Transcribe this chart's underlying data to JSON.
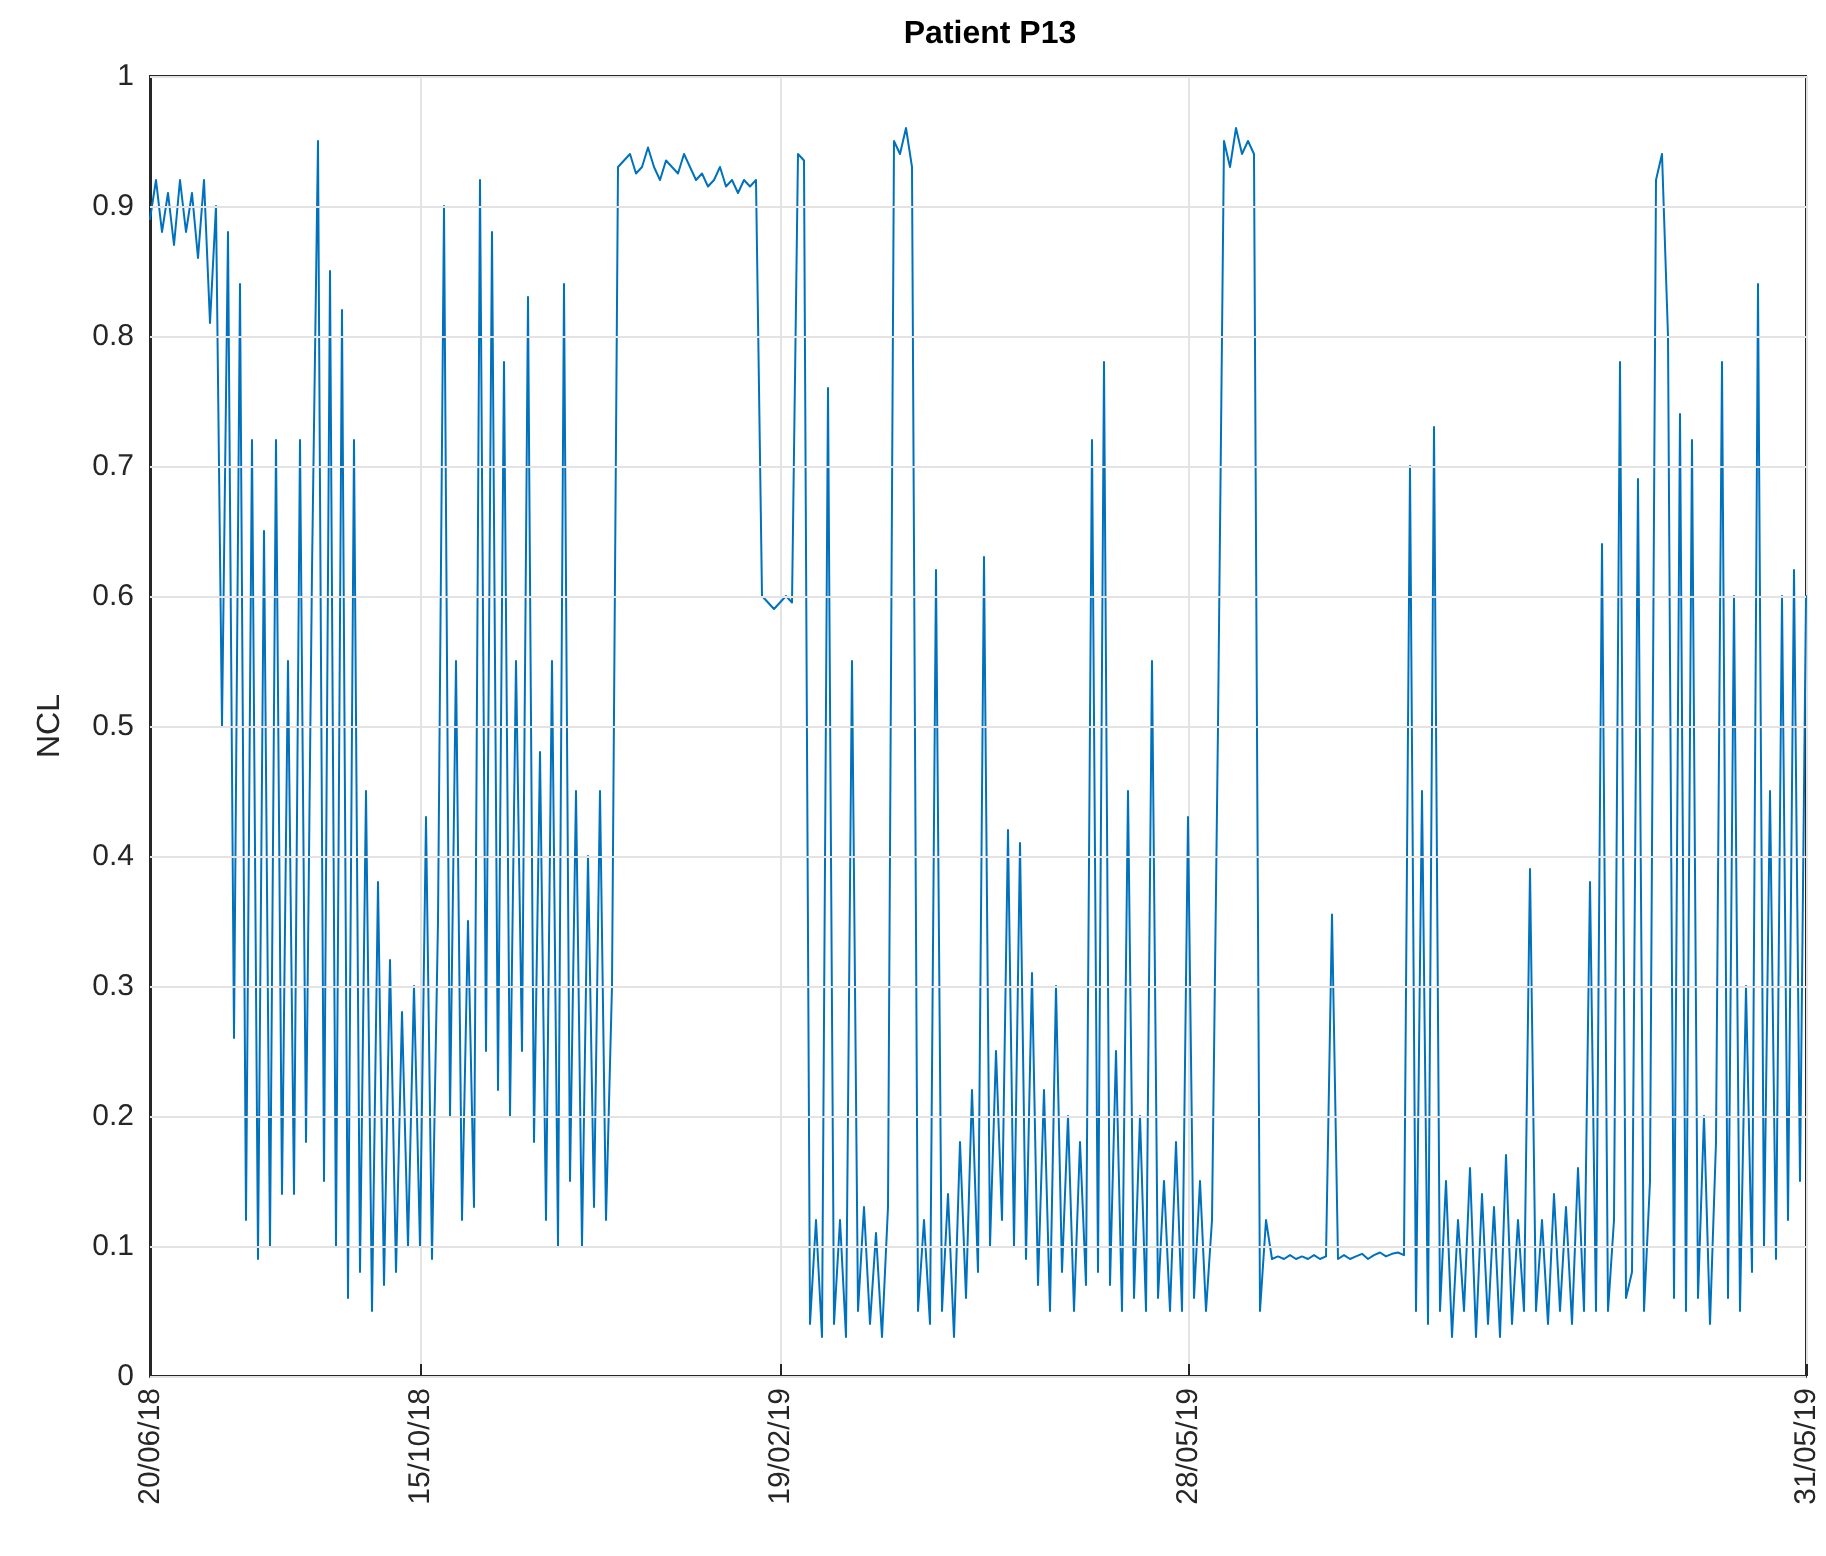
{
  "chart_data": {
    "type": "line",
    "title": "Patient P13",
    "ylabel": "NCL",
    "categories": [
      "20/06/18",
      null,
      null,
      null,
      null,
      null,
      null,
      null,
      null,
      null,
      null,
      null,
      null,
      null,
      null,
      null,
      null,
      null,
      null,
      null,
      null,
      null,
      null,
      null,
      null,
      null,
      null,
      null,
      null,
      null,
      null,
      null,
      null,
      null,
      null,
      null,
      null,
      null,
      null,
      null,
      null,
      null,
      null,
      null,
      null,
      "15/10/18",
      null,
      null,
      null,
      null,
      null,
      null,
      null,
      null,
      null,
      null,
      null,
      null,
      null,
      null,
      null,
      null,
      null,
      null,
      null,
      null,
      null,
      null,
      null,
      null,
      null,
      null,
      null,
      null,
      null,
      null,
      null,
      null,
      null,
      null,
      null,
      null,
      null,
      null,
      null,
      null,
      null,
      null,
      null,
      null,
      null,
      null,
      null,
      null,
      null,
      null,
      null,
      null,
      null,
      null,
      null,
      null,
      null,
      null,
      null,
      "19/02/19",
      null,
      null,
      null,
      null,
      null,
      null,
      null,
      null,
      null,
      null,
      null,
      null,
      null,
      null,
      null,
      null,
      null,
      null,
      null,
      null,
      null,
      null,
      null,
      null,
      null,
      null,
      null,
      null,
      null,
      null,
      null,
      null,
      null,
      null,
      null,
      null,
      null,
      null,
      null,
      null,
      null,
      null,
      null,
      null,
      null,
      null,
      null,
      null,
      null,
      null,
      null,
      null,
      null,
      null,
      null,
      null,
      null,
      null,
      null,
      null,
      null,
      null,
      null,
      null,
      null,
      null,
      null,
      "28/05/19",
      null,
      null,
      null,
      null,
      null,
      null,
      null,
      null,
      null,
      null,
      null,
      null,
      null,
      null,
      null,
      null,
      null,
      null,
      null,
      null,
      null,
      null,
      null,
      null,
      null,
      null,
      null,
      null,
      null,
      null,
      null,
      null,
      null,
      null,
      null,
      null,
      null,
      null,
      null,
      null,
      null,
      null,
      null,
      null,
      null,
      null,
      null,
      null,
      null,
      null,
      null,
      null,
      null,
      null,
      null,
      null,
      null,
      null,
      null,
      null,
      null,
      null,
      null,
      null,
      null,
      null,
      null,
      null,
      null,
      null,
      null,
      null,
      null,
      null,
      null,
      null,
      null,
      null,
      null,
      null,
      null,
      null,
      null,
      null,
      null,
      null,
      null,
      null,
      null,
      null,
      null,
      null,
      null,
      null,
      null,
      null,
      null,
      null,
      null,
      null,
      null,
      null,
      "31/05/19"
    ],
    "series": [
      {
        "color": "#0072bd",
        "values": [
          0.89,
          0.92,
          0.88,
          0.91,
          0.87,
          0.92,
          0.88,
          0.91,
          0.86,
          0.92,
          0.81,
          0.9,
          0.5,
          0.88,
          0.26,
          0.84,
          0.12,
          0.72,
          0.09,
          0.65,
          0.1,
          0.72,
          0.14,
          0.55,
          0.14,
          0.72,
          0.18,
          0.62,
          0.95,
          0.15,
          0.85,
          0.1,
          0.82,
          0.06,
          0.72,
          0.08,
          0.45,
          0.05,
          0.38,
          0.07,
          0.32,
          0.08,
          0.28,
          0.1,
          0.3,
          0.1,
          0.43,
          0.09,
          0.35,
          0.9,
          0.2,
          0.55,
          0.12,
          0.35,
          0.13,
          0.92,
          0.25,
          0.88,
          0.22,
          0.78,
          0.2,
          0.55,
          0.25,
          0.83,
          0.18,
          0.48,
          0.12,
          0.55,
          0.1,
          0.84,
          0.15,
          0.45,
          0.1,
          0.4,
          0.13,
          0.45,
          0.12,
          0.3,
          0.93,
          0.935,
          0.94,
          0.925,
          0.93,
          0.945,
          0.93,
          0.92,
          0.935,
          0.93,
          0.925,
          0.94,
          0.93,
          0.92,
          0.925,
          0.915,
          0.92,
          0.93,
          0.915,
          0.92,
          0.91,
          0.92,
          0.915,
          0.92,
          0.6,
          0.595,
          0.59,
          0.595,
          0.6,
          0.595,
          0.94,
          0.935,
          0.04,
          0.12,
          0.03,
          0.76,
          0.04,
          0.12,
          0.03,
          0.55,
          0.05,
          0.13,
          0.04,
          0.11,
          0.03,
          0.13,
          0.95,
          0.94,
          0.96,
          0.93,
          0.05,
          0.12,
          0.04,
          0.62,
          0.05,
          0.14,
          0.03,
          0.18,
          0.06,
          0.22,
          0.08,
          0.63,
          0.1,
          0.25,
          0.12,
          0.42,
          0.1,
          0.41,
          0.09,
          0.31,
          0.07,
          0.22,
          0.05,
          0.3,
          0.08,
          0.2,
          0.05,
          0.18,
          0.07,
          0.72,
          0.08,
          0.78,
          0.07,
          0.25,
          0.05,
          0.45,
          0.06,
          0.2,
          0.05,
          0.55,
          0.06,
          0.15,
          0.05,
          0.18,
          0.05,
          0.43,
          0.06,
          0.15,
          0.05,
          0.12,
          0.5,
          0.95,
          0.93,
          0.96,
          0.94,
          0.95,
          0.94,
          0.05,
          0.12,
          0.09,
          0.092,
          0.09,
          0.093,
          0.09,
          0.092,
          0.09,
          0.093,
          0.09,
          0.092,
          0.355,
          0.09,
          0.093,
          0.09,
          0.092,
          0.094,
          0.09,
          0.093,
          0.095,
          0.092,
          0.094,
          0.095,
          0.093,
          0.7,
          0.05,
          0.45,
          0.04,
          0.73,
          0.05,
          0.15,
          0.03,
          0.12,
          0.05,
          0.16,
          0.03,
          0.14,
          0.04,
          0.13,
          0.03,
          0.17,
          0.04,
          0.12,
          0.05,
          0.39,
          0.05,
          0.12,
          0.04,
          0.14,
          0.05,
          0.13,
          0.04,
          0.16,
          0.05,
          0.38,
          0.05,
          0.64,
          0.05,
          0.12,
          0.78,
          0.06,
          0.08,
          0.69,
          0.05,
          0.15,
          0.92,
          0.94,
          0.8,
          0.06,
          0.74,
          0.05,
          0.72,
          0.06,
          0.2,
          0.04,
          0.18,
          0.78,
          0.06,
          0.6,
          0.05,
          0.3,
          0.08,
          0.84,
          0.1,
          0.45,
          0.09,
          0.6,
          0.12,
          0.62,
          0.15,
          0.6
        ]
      }
    ],
    "ylim": [
      0,
      1
    ],
    "yticks": [
      0,
      0.1,
      0.2,
      0.3,
      0.4,
      0.5,
      0.6,
      0.7,
      0.8,
      0.9,
      1
    ],
    "grid": true,
    "marker": "none",
    "line_style": "solid"
  }
}
